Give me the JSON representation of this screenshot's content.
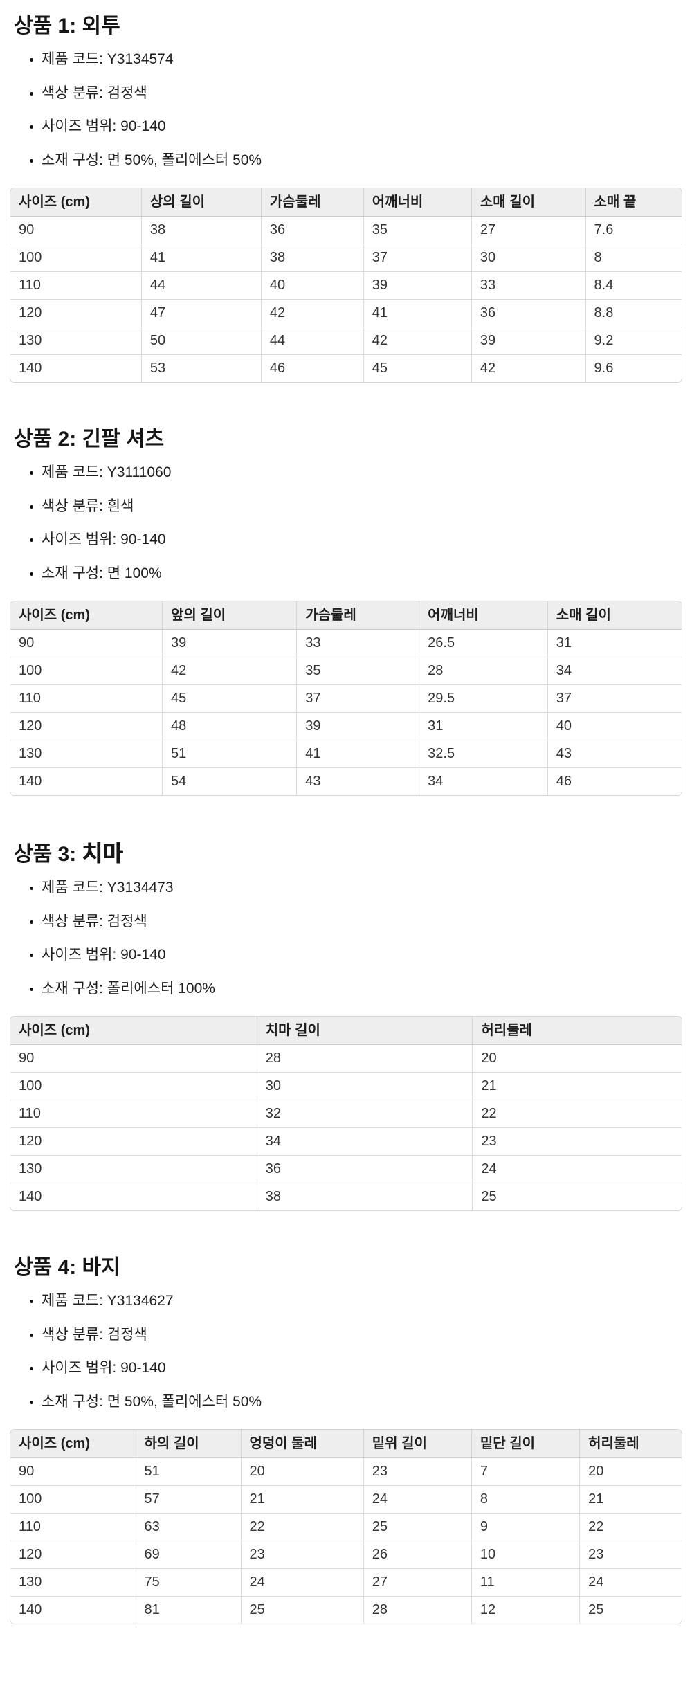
{
  "products": [
    {
      "title_prefix": "상품 1: ",
      "title_name": "외투",
      "bullets": [
        "제품 코드: Y3134574",
        "색상 분류: 검정색",
        "사이즈 범위: 90-140",
        "소재 구성: 면 50%, 폴리에스터 50%"
      ],
      "table": {
        "headers": [
          "사이즈 (cm)",
          "상의 길이",
          "가슴둘레",
          "어깨너비",
          "소매 길이",
          "소매 끝"
        ],
        "rows": [
          [
            "90",
            "38",
            "36",
            "35",
            "27",
            "7.6"
          ],
          [
            "100",
            "41",
            "38",
            "37",
            "30",
            "8"
          ],
          [
            "110",
            "44",
            "40",
            "39",
            "33",
            "8.4"
          ],
          [
            "120",
            "47",
            "42",
            "41",
            "36",
            "8.8"
          ],
          [
            "130",
            "50",
            "44",
            "42",
            "39",
            "9.2"
          ],
          [
            "140",
            "53",
            "46",
            "45",
            "42",
            "9.6"
          ]
        ]
      }
    },
    {
      "title_prefix": "상품 2: ",
      "title_name": "긴팔 셔츠",
      "bullets": [
        "제품 코드: Y3111060",
        "색상 분류: 흰색",
        "사이즈 범위: 90-140",
        "소재 구성: 면 100%"
      ],
      "table": {
        "headers": [
          "사이즈 (cm)",
          "앞의 길이",
          "가슴둘레",
          "어깨너비",
          "소매 길이"
        ],
        "rows": [
          [
            "90",
            "39",
            "33",
            "26.5",
            "31"
          ],
          [
            "100",
            "42",
            "35",
            "28",
            "34"
          ],
          [
            "110",
            "45",
            "37",
            "29.5",
            "37"
          ],
          [
            "120",
            "48",
            "39",
            "31",
            "40"
          ],
          [
            "130",
            "51",
            "41",
            "32.5",
            "43"
          ],
          [
            "140",
            "54",
            "43",
            "34",
            "46"
          ]
        ]
      }
    },
    {
      "title_prefix": "상품 3: ",
      "title_name": "치마",
      "bullets": [
        "제품 코드: Y3134473",
        "색상 분류: 검정색",
        "사이즈 범위: 90-140",
        "소재 구성: 폴리에스터 100%"
      ],
      "table": {
        "headers": [
          "사이즈 (cm)",
          "치마 길이",
          "허리둘레"
        ],
        "rows": [
          [
            "90",
            "28",
            "20"
          ],
          [
            "100",
            "30",
            "21"
          ],
          [
            "110",
            "32",
            "22"
          ],
          [
            "120",
            "34",
            "23"
          ],
          [
            "130",
            "36",
            "24"
          ],
          [
            "140",
            "38",
            "25"
          ]
        ]
      }
    },
    {
      "title_prefix": "상품 4: ",
      "title_name": "바지",
      "bullets": [
        "제품 코드: Y3134627",
        "색상 분류: 검정색",
        "사이즈 범위: 90-140",
        "소재 구성: 면 50%, 폴리에스터 50%"
      ],
      "table": {
        "headers": [
          "사이즈 (cm)",
          "하의 길이",
          "엉덩이 둘레",
          "밑위 길이",
          "밑단 길이",
          "허리둘레"
        ],
        "rows": [
          [
            "90",
            "51",
            "20",
            "23",
            "7",
            "20"
          ],
          [
            "100",
            "57",
            "21",
            "24",
            "8",
            "21"
          ],
          [
            "110",
            "63",
            "22",
            "25",
            "9",
            "22"
          ],
          [
            "120",
            "69",
            "23",
            "26",
            "10",
            "23"
          ],
          [
            "130",
            "75",
            "24",
            "27",
            "11",
            "24"
          ],
          [
            "140",
            "81",
            "25",
            "28",
            "12",
            "25"
          ]
        ]
      }
    }
  ]
}
